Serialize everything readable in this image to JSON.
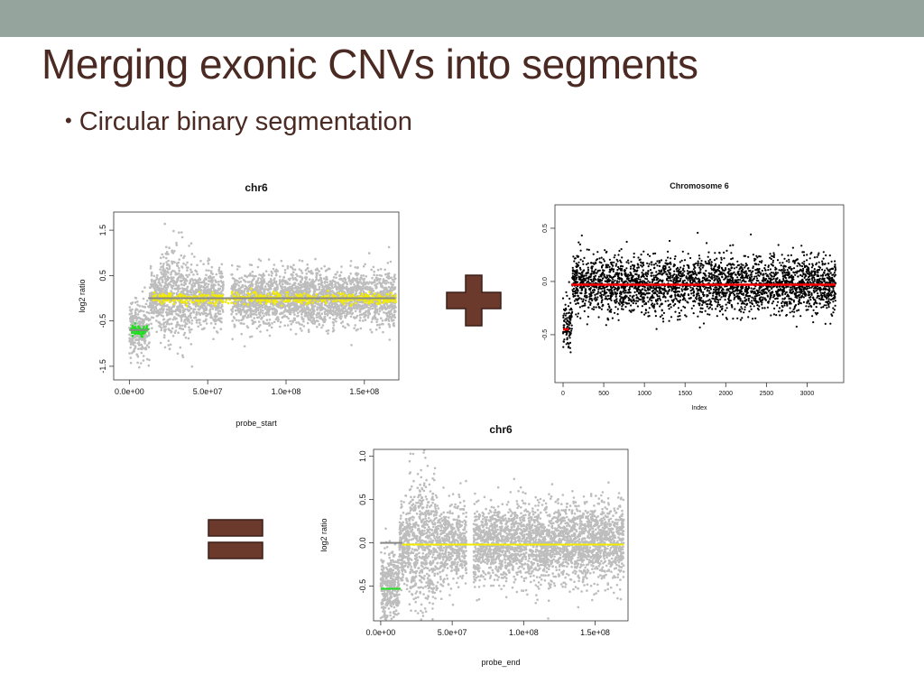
{
  "slide": {
    "title": "Merging exonic CNVs into segments",
    "bullet": "Circular binary segmentation",
    "colors": {
      "top_bar": "#95a59e",
      "text": "#4a2a22",
      "operator": "#6b3a2c",
      "operator_border": "#3a1f18"
    },
    "operators": [
      {
        "icon": "plus-icon",
        "meaning": "plus"
      },
      {
        "icon": "equals-icon",
        "meaning": "equals"
      }
    ]
  },
  "chart_data": [
    {
      "type": "scatter",
      "title": "chr6",
      "xlabel": "probe_start",
      "ylabel": "log2 ratio",
      "xlim": [
        -10000000,
        172000000
      ],
      "ylim": [
        -1.8,
        1.9
      ],
      "x_ticks": [
        0,
        50000000,
        100000000,
        150000000
      ],
      "x_tick_labels": [
        "0.0e+00",
        "5.0e+07",
        "1.0e+08",
        "1.5e+08"
      ],
      "y_ticks": [
        -1.5,
        -0.5,
        0.5,
        1.5
      ],
      "y_tick_labels": [
        "-1.5",
        "-0.5",
        "0.5",
        "1.5"
      ],
      "grid": false,
      "series": [
        {
          "color": "#bdbdbd",
          "role": "exon probes",
          "x_range": [
            0,
            170000000
          ],
          "y_center": 0.0,
          "y_spread": 0.3
        },
        {
          "color": "#f2ea00",
          "role": "merged exonic CNVs (normal)",
          "x_range": [
            15000000,
            170000000
          ],
          "y_center": 0.0,
          "y_spread": 0.06
        },
        {
          "color": "#22dd22",
          "role": "merged exonic CNVs (deletion)",
          "x_range": [
            1000000,
            12000000
          ],
          "y_center": -0.7,
          "y_spread": 0.05
        }
      ],
      "segments": [
        {
          "x0": 0,
          "x1": 12000000,
          "y": -0.7,
          "color": "#888888"
        },
        {
          "x0": 12000000,
          "x1": 170000000,
          "y": 0.0,
          "color": "#888888"
        }
      ]
    },
    {
      "type": "scatter",
      "title": "Chromosome 6",
      "xlabel": "Index",
      "ylabel": "",
      "xlim": [
        -100,
        3450
      ],
      "ylim": [
        -0.95,
        0.72
      ],
      "x_ticks": [
        0,
        500,
        1000,
        1500,
        2000,
        2500,
        3000
      ],
      "x_tick_labels": [
        "0",
        "500",
        "1000",
        "1500",
        "2000",
        "2500",
        "3000"
      ],
      "y_ticks": [
        -0.5,
        0.0,
        0.5
      ],
      "y_tick_labels": [
        "-0.5",
        "0.0",
        "0.5"
      ],
      "grid": false,
      "series": [
        {
          "color": "#000000",
          "role": "segment log ratios",
          "x_range": [
            0,
            3350
          ],
          "y_center": -0.03,
          "y_spread": 0.13
        }
      ],
      "segments": [
        {
          "x0": 0,
          "x1": 70,
          "y": -0.45,
          "color": "#ff0000"
        },
        {
          "x0": 100,
          "x1": 3350,
          "y": -0.03,
          "color": "#ff0000"
        }
      ]
    },
    {
      "type": "scatter",
      "title": "chr6",
      "xlabel": "probe_end",
      "ylabel": "log2 ratio",
      "xlim": [
        -5000000,
        173000000
      ],
      "ylim": [
        -0.9,
        1.08
      ],
      "x_ticks": [
        0,
        50000000,
        100000000,
        150000000
      ],
      "x_tick_labels": [
        "0.0e+00",
        "5.0e+07",
        "1.0e+08",
        "1.5e+08"
      ],
      "y_ticks": [
        -0.5,
        0.0,
        0.5,
        1.0
      ],
      "y_tick_labels": [
        "-0.5",
        "0.0",
        "0.5",
        "1.0"
      ],
      "grid": false,
      "series": [
        {
          "color": "#bdbdbd",
          "role": "exon probes",
          "x_range": [
            0,
            170000000
          ],
          "y_center": 0.0,
          "y_spread": 0.22
        }
      ],
      "segments": [
        {
          "x0": 0,
          "x1": 15000000,
          "y": 0.0,
          "color": "#888888"
        },
        {
          "x0": 15000000,
          "x1": 170000000,
          "y": -0.02,
          "color": "#f2ea00"
        },
        {
          "x0": 0,
          "x1": 14000000,
          "y": -0.53,
          "color": "#22dd22"
        }
      ]
    }
  ]
}
